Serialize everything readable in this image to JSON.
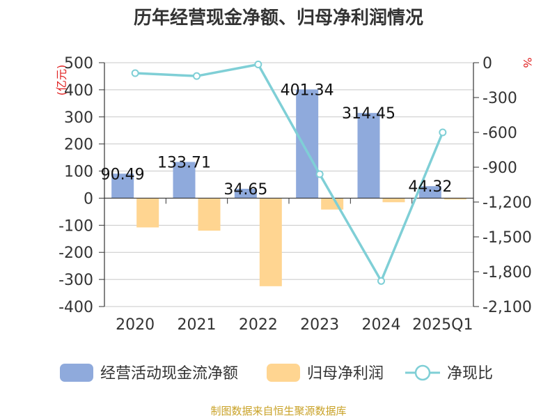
{
  "title": "历年经营现金净额、归母净利润情况",
  "source_text": "制图数据来自恒生聚源数据库",
  "colors": {
    "bar1": "#8faadc",
    "bar2": "#ffd591",
    "line": "#7fcfd6",
    "unit": "#e02020",
    "source": "#c9a227"
  },
  "chart_data": {
    "type": "bar",
    "categories": [
      "2020",
      "2021",
      "2022",
      "2023",
      "2024",
      "2025Q1"
    ],
    "series": [
      {
        "name": "经营活动现金流净额",
        "type": "bar",
        "axis": "left",
        "values": [
          90.49,
          133.71,
          34.65,
          401.34,
          314.45,
          44.32
        ],
        "labels": [
          "90.49",
          "133.71",
          "34.65",
          "401.34",
          "314.45",
          "44.32"
        ]
      },
      {
        "name": "归母净利润",
        "type": "bar",
        "axis": "left",
        "values": [
          -108,
          -120,
          -325,
          -42,
          -15,
          -5
        ]
      },
      {
        "name": "净现比",
        "type": "line",
        "axis": "right",
        "values": [
          -90,
          -115,
          -15,
          -960,
          -1880,
          -600
        ]
      }
    ],
    "y_left": {
      "unit": "(亿元)",
      "min": -400,
      "max": 500,
      "step": 100,
      "ticks": [
        "500",
        "400",
        "300",
        "200",
        "100",
        "0",
        "-100",
        "-200",
        "-300",
        "-400"
      ]
    },
    "y_right": {
      "unit": "%",
      "min": -2100,
      "max": 0,
      "step": 300,
      "ticks": [
        "0",
        "-300",
        "-600",
        "-900",
        "-1,200",
        "-1,500",
        "-1,800",
        "-2,100"
      ]
    },
    "grid": true,
    "legend_position": "bottom"
  }
}
